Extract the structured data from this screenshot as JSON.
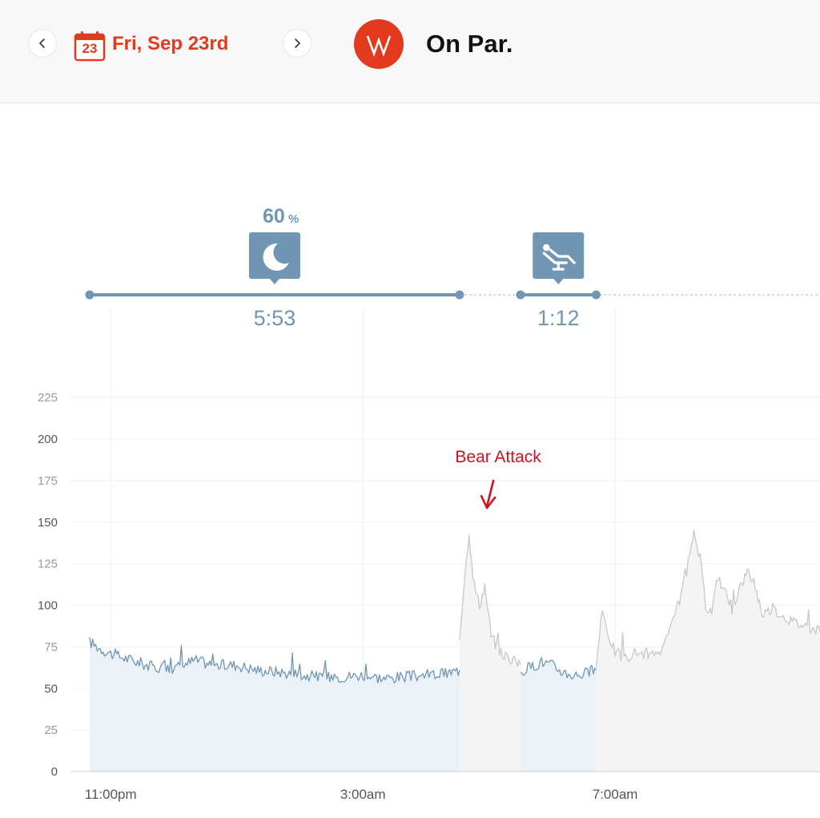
{
  "header": {
    "prev_icon": "chevron-left-icon",
    "next_icon": "chevron-right-icon",
    "calendar_icon": "calendar-icon",
    "calendar_day": "23",
    "date": "Fri, Sep 23rd",
    "logo_icon": "whoop-logo-icon",
    "title": "On Par."
  },
  "colors": {
    "accent": "#e33a1d",
    "sleep": "#7196b3",
    "awake": "#c8c8c8",
    "annotation": "#d4101f"
  },
  "chart_data": {
    "type": "line",
    "yticks": [
      0,
      25,
      50,
      75,
      100,
      125,
      150,
      175,
      200,
      225
    ],
    "ylim": [
      0,
      230
    ],
    "xticks": [
      {
        "label": "11:00pm",
        "t": 0
      },
      {
        "label": "3:00am",
        "t": 240
      },
      {
        "label": "7:00am",
        "t": 480
      }
    ],
    "x_range_minutes": [
      -20,
      675
    ],
    "x_unit": "minutes from 11:00pm",
    "grid": true,
    "activities": [
      {
        "icon": "moon-icon",
        "percent": "60",
        "percent_unit": "%",
        "duration": "5:53",
        "start": -20,
        "end": 332
      },
      {
        "icon": "recline-chair-icon",
        "duration": "1:12",
        "start": 390,
        "end": 462
      }
    ],
    "annotation": {
      "text": "Bear Attack",
      "at": 355
    },
    "series": [
      {
        "segment": "sleep",
        "points": [
          [
            -20,
            78
          ],
          [
            -10,
            74
          ],
          [
            0,
            71
          ],
          [
            20,
            67
          ],
          [
            40,
            63
          ],
          [
            60,
            62
          ],
          [
            80,
            67
          ],
          [
            100,
            64
          ],
          [
            120,
            64
          ],
          [
            140,
            61
          ],
          [
            160,
            60
          ],
          [
            180,
            58
          ],
          [
            200,
            57
          ],
          [
            220,
            57
          ],
          [
            240,
            58
          ],
          [
            260,
            56
          ],
          [
            280,
            57
          ],
          [
            300,
            58
          ],
          [
            320,
            59
          ],
          [
            332,
            61
          ]
        ]
      },
      {
        "segment": "awake",
        "points": [
          [
            332,
            80
          ],
          [
            337,
            120
          ],
          [
            341,
            143
          ],
          [
            346,
            112
          ],
          [
            351,
            100
          ],
          [
            356,
            112
          ],
          [
            362,
            82
          ],
          [
            370,
            72
          ],
          [
            380,
            68
          ],
          [
            390,
            64
          ]
        ]
      },
      {
        "segment": "sleep",
        "points": [
          [
            390,
            60
          ],
          [
            400,
            63
          ],
          [
            410,
            66
          ],
          [
            420,
            64
          ],
          [
            430,
            60
          ],
          [
            440,
            58
          ],
          [
            450,
            59
          ],
          [
            462,
            61
          ]
        ]
      },
      {
        "segment": "awake",
        "points": [
          [
            462,
            64
          ],
          [
            468,
            97
          ],
          [
            474,
            82
          ],
          [
            480,
            72
          ],
          [
            490,
            68
          ],
          [
            500,
            72
          ],
          [
            510,
            71
          ],
          [
            520,
            69
          ],
          [
            530,
            80
          ],
          [
            540,
            100
          ],
          [
            548,
            120
          ],
          [
            555,
            142
          ],
          [
            561,
            128
          ],
          [
            566,
            100
          ],
          [
            572,
            96
          ],
          [
            578,
            118
          ],
          [
            584,
            108
          ],
          [
            590,
            95
          ],
          [
            598,
            110
          ],
          [
            606,
            120
          ],
          [
            612,
            115
          ],
          [
            620,
            95
          ],
          [
            630,
            98
          ],
          [
            640,
            94
          ],
          [
            650,
            90
          ],
          [
            660,
            88
          ],
          [
            675,
            84
          ]
        ]
      }
    ]
  }
}
